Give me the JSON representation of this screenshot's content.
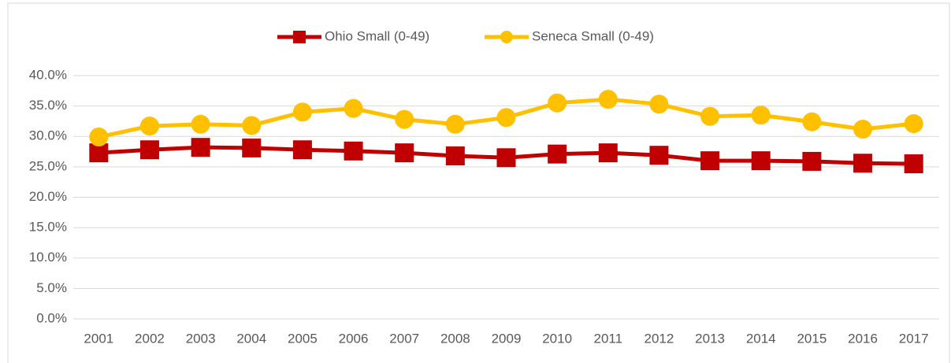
{
  "chart_data": {
    "type": "line",
    "categories": [
      "2001",
      "2002",
      "2003",
      "2004",
      "2005",
      "2006",
      "2007",
      "2008",
      "2009",
      "2010",
      "2011",
      "2012",
      "2013",
      "2014",
      "2015",
      "2016",
      "2017"
    ],
    "series": [
      {
        "name": "Ohio Small (0-49)",
        "color": "#c00000",
        "marker": "square",
        "values": [
          27.3,
          27.8,
          28.2,
          28.1,
          27.8,
          27.6,
          27.3,
          26.8,
          26.5,
          27.1,
          27.3,
          26.9,
          26.0,
          26.0,
          25.9,
          25.6,
          25.5
        ]
      },
      {
        "name": "Seneca  Small (0-49)",
        "color": "#ffc000",
        "marker": "circle",
        "values": [
          29.9,
          31.7,
          32.0,
          31.8,
          34.0,
          34.6,
          32.8,
          32.0,
          33.1,
          35.5,
          36.1,
          35.3,
          33.3,
          33.5,
          32.4,
          31.2,
          32.1
        ]
      }
    ],
    "ylim": [
      0,
      40
    ],
    "yticks": [
      {
        "value": 0,
        "label": "0.0%"
      },
      {
        "value": 5,
        "label": "5.0%"
      },
      {
        "value": 10,
        "label": "10.0%"
      },
      {
        "value": 15,
        "label": "15.0%"
      },
      {
        "value": 20,
        "label": "20.0%"
      },
      {
        "value": 25,
        "label": "25.0%"
      },
      {
        "value": 30,
        "label": "30.0%"
      },
      {
        "value": 35,
        "label": "35.0%"
      },
      {
        "value": 40,
        "label": "40.0%"
      }
    ],
    "grid": true,
    "legend": "top"
  }
}
